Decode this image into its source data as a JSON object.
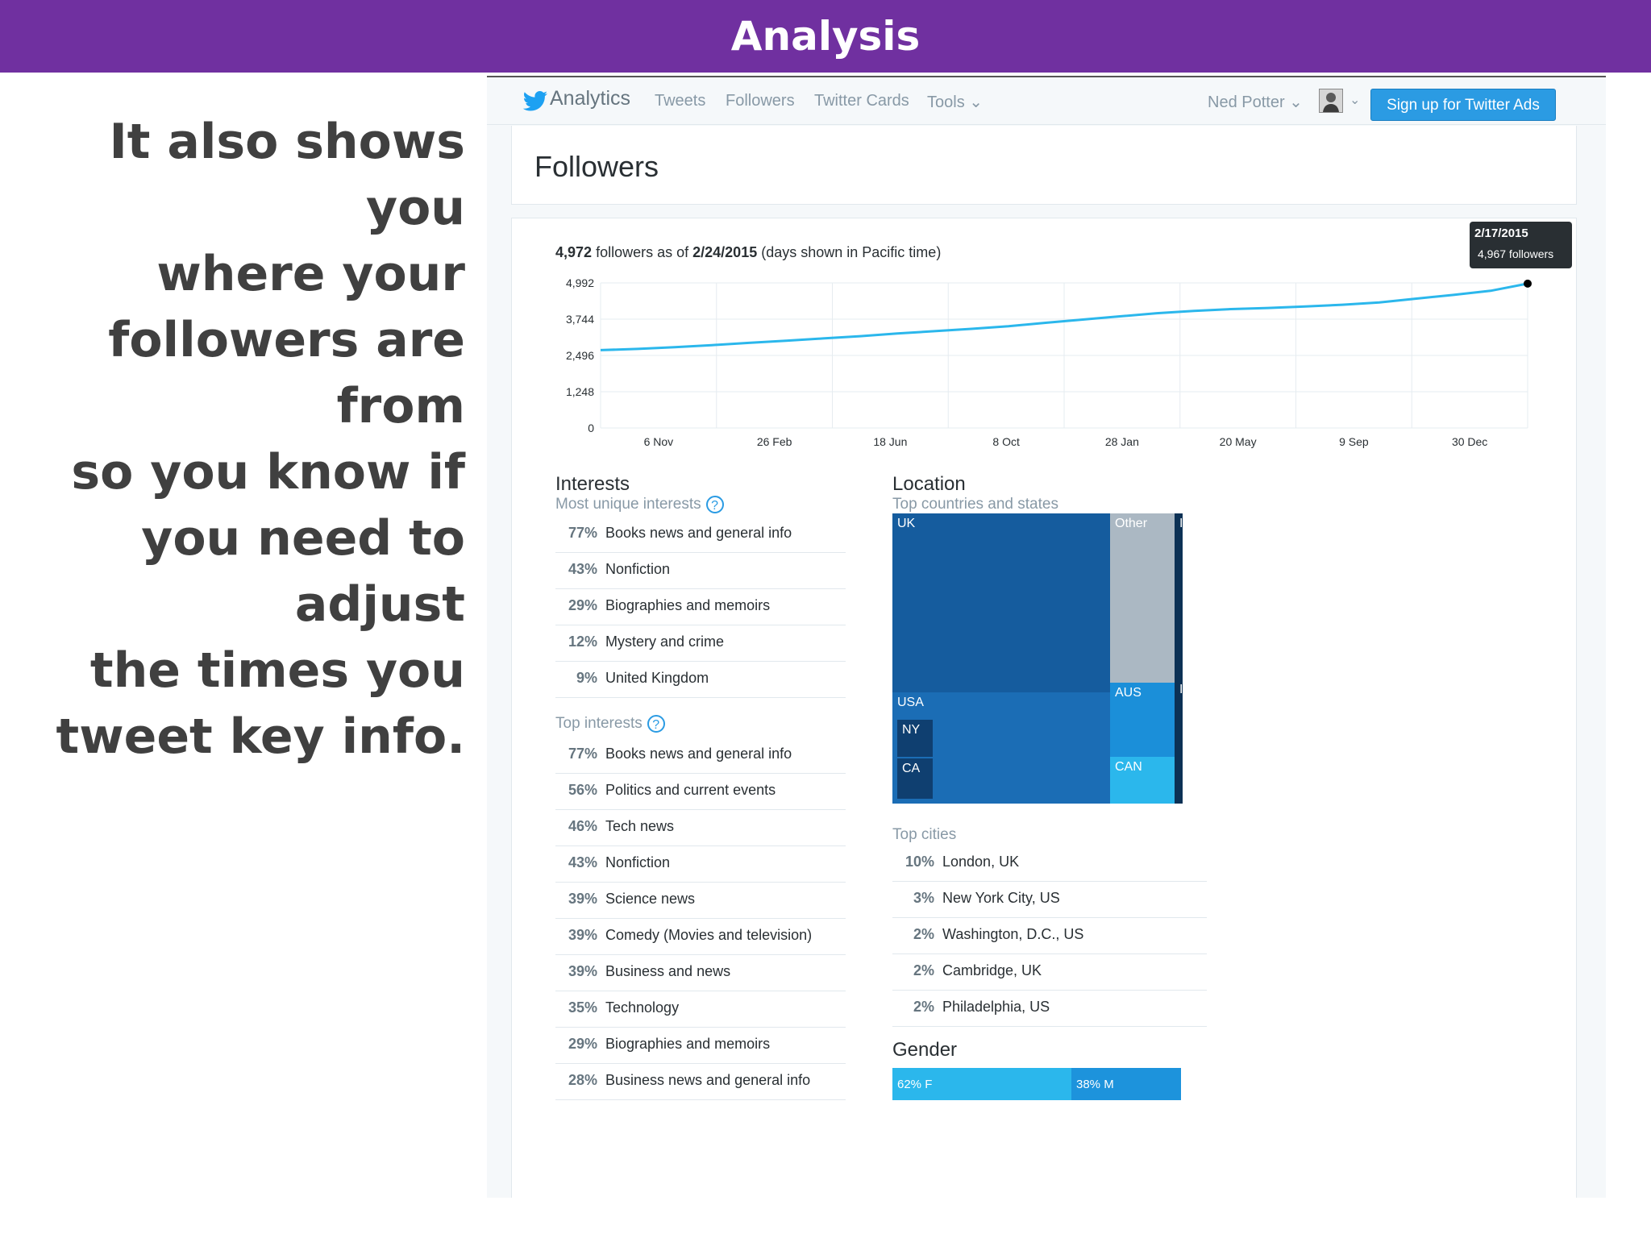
{
  "slide": {
    "title": "Analysis",
    "body_lines": [
      "It also shows you",
      "where your",
      "followers are from",
      "so you know if",
      "you need to adjust",
      "the times you",
      "tweet key info."
    ]
  },
  "nav": {
    "brand": "Analytics",
    "links": [
      "Tweets",
      "Followers",
      "Twitter Cards",
      "Tools"
    ],
    "tools_caret": "⌄",
    "user": "Ned Potter",
    "user_caret": "⌄",
    "avatar_caret": "⌄",
    "ads_button": "Sign up for Twitter Ads"
  },
  "page": {
    "title": "Followers"
  },
  "summary": {
    "count": "4,972",
    "text1": "followers as of",
    "date": "2/24/2015",
    "text2": "(days shown in Pacific time)"
  },
  "tooltip": {
    "date": "2/17/2015",
    "value": "4,967 followers"
  },
  "chart_data": {
    "type": "line",
    "title": "",
    "xlabel": "",
    "ylabel": "",
    "y_ticks": [
      0,
      1248,
      2496,
      3744,
      4992
    ],
    "y_tick_labels": [
      "0",
      "1,248",
      "2,496",
      "3,744",
      "4,992"
    ],
    "ylim": [
      0,
      4992
    ],
    "x_tick_labels": [
      "6 Nov",
      "26 Feb",
      "18 Jun",
      "8 Oct",
      "28 Jan",
      "20 May",
      "9 Sep",
      "30 Dec"
    ],
    "grid": true,
    "legend": "none",
    "line_color": "#2bb7ec",
    "series": [
      {
        "x": [
          0,
          0.04,
          0.08,
          0.12,
          0.16,
          0.2,
          0.24,
          0.28,
          0.32,
          0.36,
          0.4,
          0.44,
          0.48,
          0.52,
          0.56,
          0.6,
          0.64,
          0.68,
          0.72,
          0.76,
          0.8,
          0.84,
          0.88,
          0.92,
          0.96,
          1.0
        ],
        "y": [
          2680,
          2720,
          2780,
          2850,
          2930,
          3000,
          3080,
          3160,
          3250,
          3330,
          3410,
          3500,
          3620,
          3730,
          3840,
          3950,
          4030,
          4090,
          4130,
          4180,
          4240,
          4320,
          4450,
          4580,
          4720,
          4967
        ]
      }
    ],
    "highlight_point": {
      "date": "2/17/2015",
      "value": 4967
    }
  },
  "interests": {
    "title": "Interests",
    "unique_label": "Most unique interests",
    "unique": [
      {
        "pct": "77%",
        "label": "Books news and general info"
      },
      {
        "pct": "43%",
        "label": "Nonfiction"
      },
      {
        "pct": "29%",
        "label": "Biographies and memoirs"
      },
      {
        "pct": "12%",
        "label": "Mystery and crime"
      },
      {
        "pct": "9%",
        "label": "United Kingdom"
      }
    ],
    "top_label": "Top interests",
    "top": [
      {
        "pct": "77%",
        "label": "Books news and general info"
      },
      {
        "pct": "56%",
        "label": "Politics and current events"
      },
      {
        "pct": "46%",
        "label": "Tech news"
      },
      {
        "pct": "43%",
        "label": "Nonfiction"
      },
      {
        "pct": "39%",
        "label": "Science news"
      },
      {
        "pct": "39%",
        "label": "Comedy (Movies and television)"
      },
      {
        "pct": "39%",
        "label": "Business and news"
      },
      {
        "pct": "35%",
        "label": "Technology"
      },
      {
        "pct": "29%",
        "label": "Biographies and memoirs"
      },
      {
        "pct": "28%",
        "label": "Business news and general info"
      }
    ],
    "help_icon": "?"
  },
  "location": {
    "title": "Location",
    "countries_label": "Top countries and states",
    "treemap": {
      "uk": "UK",
      "other": "Other",
      "usa": "USA",
      "ny": "NY",
      "ca": "CA",
      "aus": "AUS",
      "can": "CAN",
      "i1": "I",
      "i2": "I",
      "colors": {
        "uk": "#155c9e",
        "other": "#abb8c3",
        "usa": "#1b6db5",
        "state": "#0f3f70",
        "aus": "#1b8fd9",
        "can": "#2bb7ec",
        "strip": "#0c3155"
      }
    },
    "cities_label": "Top cities",
    "cities": [
      {
        "pct": "10%",
        "label": "London, UK"
      },
      {
        "pct": "3%",
        "label": "New York City, US"
      },
      {
        "pct": "2%",
        "label": "Washington, D.C., US"
      },
      {
        "pct": "2%",
        "label": "Cambridge, UK"
      },
      {
        "pct": "2%",
        "label": "Philadelphia, US"
      }
    ]
  },
  "gender": {
    "title": "Gender",
    "female_label": "62% F",
    "male_label": "38% M",
    "female_share": 0.62
  }
}
